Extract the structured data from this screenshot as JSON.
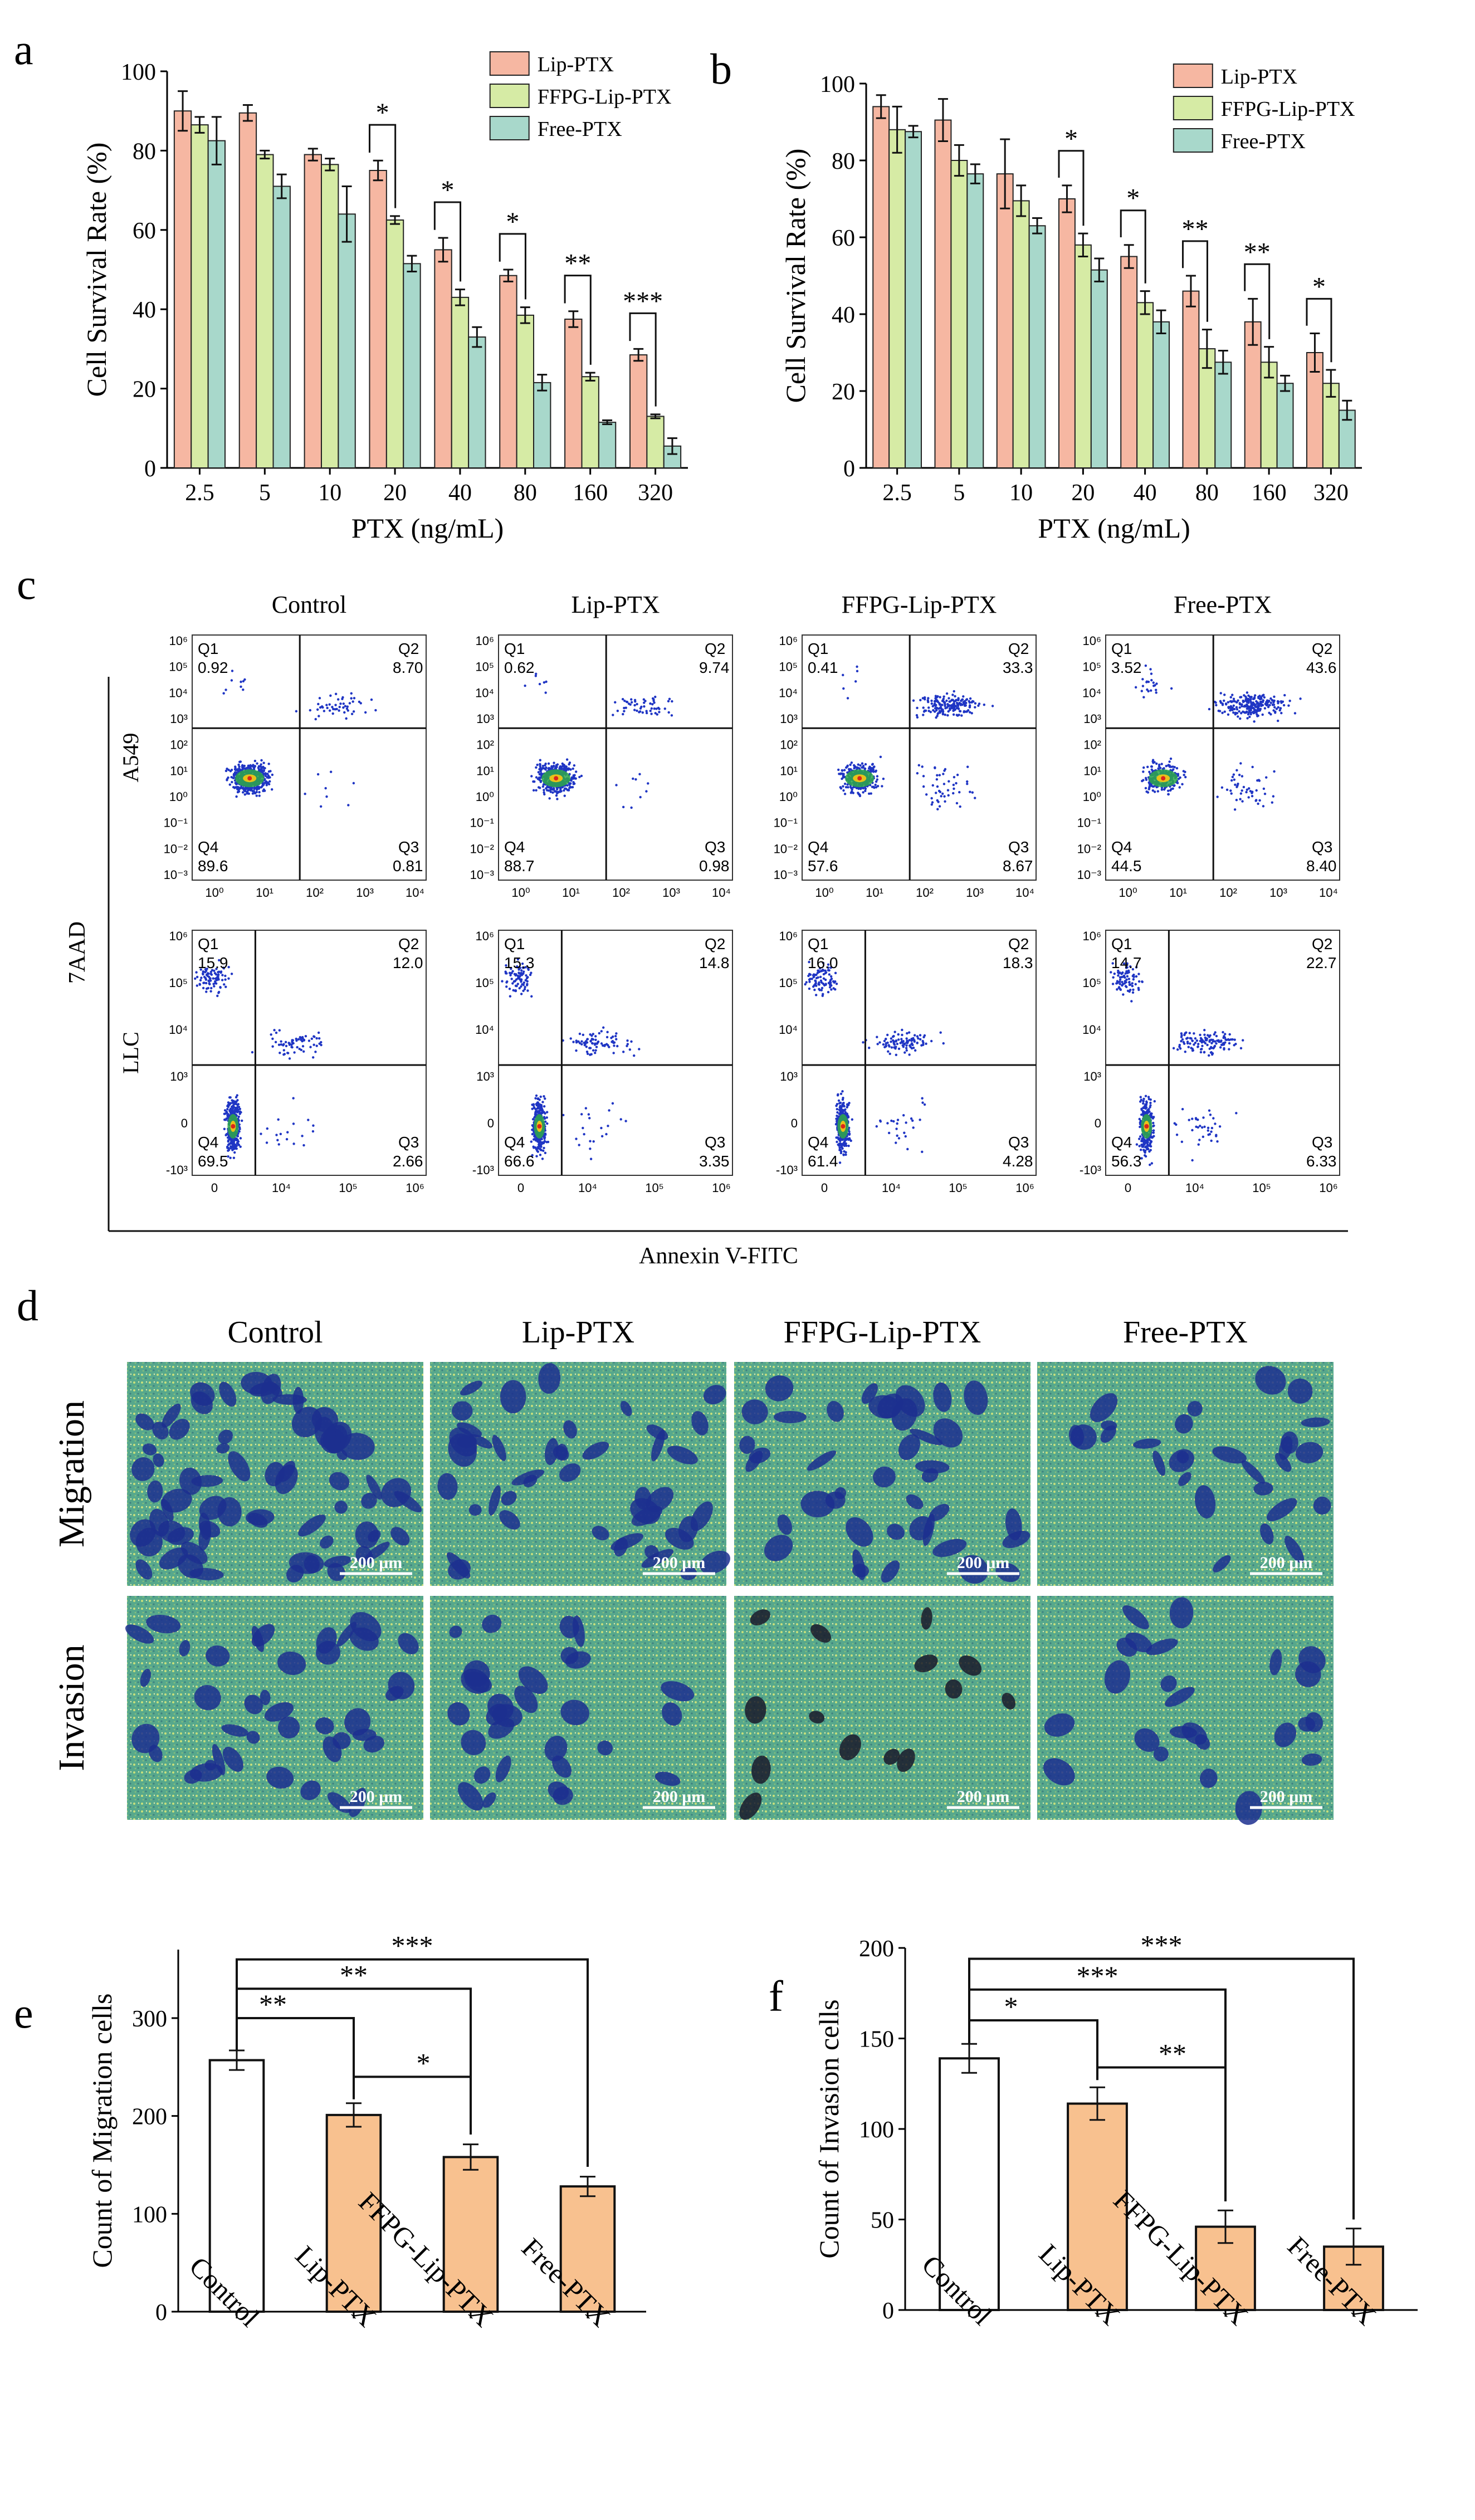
{
  "colors": {
    "lip": "#f6b7a2",
    "ffpg": "#d6eba5",
    "free": "#a8d8cb",
    "bar_orange": "#f8c18f",
    "bar_white": "#ffffff",
    "dot_blue": "#1f35c4",
    "stain_bg": "#57a88c",
    "stain_cell": "#1c2f8f"
  },
  "panel_labels": {
    "a": "a",
    "b": "b",
    "c": "c",
    "d": "d",
    "e": "e",
    "f": "f"
  },
  "chart_data": [
    {
      "id": "a",
      "type": "bar",
      "xlabel": "PTX (ng/mL)",
      "ylabel": "Cell Survival Rate (%)",
      "ylim": [
        0,
        100
      ],
      "yticks": [
        "0",
        "20",
        "40",
        "60",
        "80",
        "100"
      ],
      "categories": [
        "2.5",
        "5",
        "10",
        "20",
        "40",
        "80",
        "160",
        "320"
      ],
      "legend_position": "top-right",
      "series": [
        {
          "name": "Lip-PTX",
          "values": [
            90,
            89.5,
            79,
            75,
            55,
            48.5,
            37.5,
            28.5
          ],
          "errors": [
            5,
            2,
            1.5,
            2.5,
            3,
            1.5,
            2,
            1.5
          ]
        },
        {
          "name": "FFPG-Lip-PTX",
          "values": [
            86.5,
            79,
            76.5,
            62.5,
            43,
            38.5,
            23,
            13
          ],
          "errors": [
            2,
            1,
            1.5,
            1,
            2,
            2,
            1,
            0.5
          ]
        },
        {
          "name": "Free-PTX",
          "values": [
            82.5,
            71,
            64,
            51.5,
            33,
            21.5,
            11.5,
            5.5
          ],
          "errors": [
            6,
            3,
            7,
            2,
            2.5,
            2,
            0.5,
            2
          ]
        }
      ],
      "significance": [
        {
          "category": "20",
          "label": "*"
        },
        {
          "category": "40",
          "label": "*"
        },
        {
          "category": "80",
          "label": "*"
        },
        {
          "category": "160",
          "label": "**"
        },
        {
          "category": "320",
          "label": "***"
        }
      ]
    },
    {
      "id": "b",
      "type": "bar",
      "xlabel": "PTX (ng/mL)",
      "ylabel": "Cell Survival Rate (%)",
      "ylim": [
        0,
        100
      ],
      "yticks": [
        "0",
        "20",
        "40",
        "60",
        "80",
        "100"
      ],
      "categories": [
        "2.5",
        "5",
        "10",
        "20",
        "40",
        "80",
        "160",
        "320"
      ],
      "legend_position": "top-right",
      "series": [
        {
          "name": "Lip-PTX",
          "values": [
            94,
            90.5,
            76.5,
            70,
            55,
            46,
            38,
            30
          ],
          "errors": [
            3,
            5.5,
            9,
            3.5,
            3,
            4,
            6,
            5
          ]
        },
        {
          "name": "FFPG-Lip-PTX",
          "values": [
            88,
            80,
            69.5,
            58,
            43,
            31,
            27.5,
            22
          ],
          "errors": [
            6,
            4,
            4,
            3,
            3,
            5,
            4,
            3.5
          ]
        },
        {
          "name": "Free-PTX",
          "values": [
            87.5,
            76.5,
            63,
            51.5,
            38,
            27.5,
            22,
            15
          ],
          "errors": [
            1.5,
            2.5,
            2,
            3,
            3,
            3,
            2,
            2.5
          ]
        }
      ],
      "significance": [
        {
          "category": "20",
          "label": "*"
        },
        {
          "category": "40",
          "label": "*"
        },
        {
          "category": "80",
          "label": "**"
        },
        {
          "category": "160",
          "label": "**"
        },
        {
          "category": "320",
          "label": "*"
        }
      ]
    },
    {
      "id": "e",
      "type": "bar",
      "xlabel": "",
      "ylabel": "Count of Migration cells",
      "ylim": [
        0,
        370
      ],
      "yticks": [
        "0",
        "100",
        "200",
        "300"
      ],
      "categories": [
        "Control",
        "Lip-PTX",
        "FFPG-Lip-PTX",
        "Free-PTX"
      ],
      "values": [
        257,
        201,
        158,
        128
      ],
      "errors": [
        10,
        12,
        13,
        10
      ],
      "brackets": [
        {
          "from": 0,
          "to": 1,
          "label": "**"
        },
        {
          "from": 0,
          "to": 2,
          "label": "**"
        },
        {
          "from": 0,
          "to": 3,
          "label": "***"
        },
        {
          "from": 1,
          "to": 2,
          "label": "*"
        }
      ]
    },
    {
      "id": "f",
      "type": "bar",
      "xlabel": "",
      "ylabel": "Count of Invasion cells",
      "ylim": [
        0,
        200
      ],
      "yticks": [
        "0",
        "50",
        "100",
        "150",
        "200"
      ],
      "categories": [
        "Control",
        "Lip-PTX",
        "FFPG-Lip-PTX",
        "Free-PTX"
      ],
      "values": [
        139,
        114,
        46,
        35
      ],
      "errors": [
        8,
        9,
        9,
        10
      ],
      "brackets": [
        {
          "from": 0,
          "to": 1,
          "label": "*"
        },
        {
          "from": 0,
          "to": 2,
          "label": "***"
        },
        {
          "from": 0,
          "to": 3,
          "label": "***"
        },
        {
          "from": 1,
          "to": 2,
          "label": "**"
        }
      ]
    }
  ],
  "flow": {
    "column_titles": [
      "Control",
      "Lip-PTX",
      "FFPG-Lip-PTX",
      "Free-PTX"
    ],
    "row_labels": [
      "A549",
      "LLC"
    ],
    "y_axis_label": "7AAD",
    "x_axis_label": "Annexin V-FITC",
    "quadrant_names": [
      "Q1",
      "Q2",
      "Q3",
      "Q4"
    ],
    "rows": [
      {
        "yticks": [
          "10⁶",
          "10⁵",
          "10⁴",
          "10³",
          "10²",
          "10¹",
          "10⁰",
          "10⁻¹",
          "10⁻²",
          "10⁻³"
        ],
        "xticks": [
          "10⁰",
          "10¹",
          "10²",
          "10³",
          "10⁴"
        ],
        "plots": [
          {
            "q1": "0.92",
            "q2": "8.70",
            "q3": "0.81",
            "q4": "89.6"
          },
          {
            "q1": "0.62",
            "q2": "9.74",
            "q3": "0.98",
            "q4": "88.7"
          },
          {
            "q1": "0.41",
            "q2": "33.3",
            "q3": "8.67",
            "q4": "57.6"
          },
          {
            "q1": "3.52",
            "q2": "43.6",
            "q3": "8.40",
            "q4": "44.5"
          }
        ]
      },
      {
        "yticks": [
          "10⁶",
          "10⁵",
          "10⁴",
          "10³",
          "0",
          "-10³"
        ],
        "xticks": [
          "0",
          "10⁴",
          "10⁵",
          "10⁶"
        ],
        "plots": [
          {
            "q1": "15.9",
            "q2": "12.0",
            "q3": "2.66",
            "q4": "69.5"
          },
          {
            "q1": "15.3",
            "q2": "14.8",
            "q3": "3.35",
            "q4": "66.6"
          },
          {
            "q1": "16.0",
            "q2": "18.3",
            "q3": "4.28",
            "q4": "61.4"
          },
          {
            "q1": "14.7",
            "q2": "22.7",
            "q3": "6.33",
            "q4": "56.3"
          }
        ]
      }
    ]
  },
  "micro": {
    "column_titles": [
      "Control",
      "Lip-PTX",
      "FFPG-Lip-PTX",
      "Free-PTX"
    ],
    "row_labels": [
      "Migration",
      "Invasion"
    ],
    "scale_bar": "200 μm"
  }
}
